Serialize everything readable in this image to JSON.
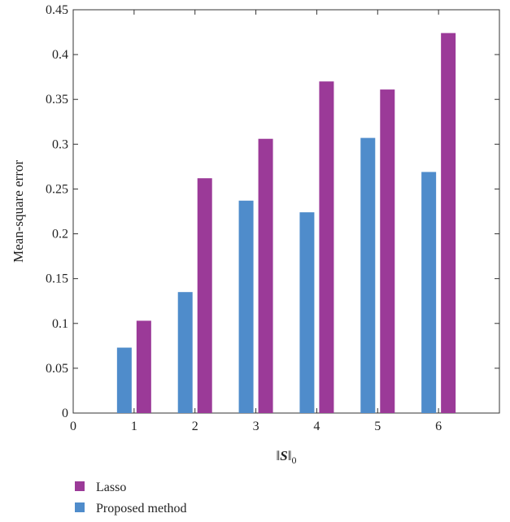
{
  "chart_data": {
    "type": "bar",
    "title": "",
    "xlabel": "‖S‖₀",
    "xlabel_parts": {
      "open": "‖",
      "var": "S",
      "close": "‖",
      "sub": "0"
    },
    "ylabel": "Mean-square error",
    "x_ticks": [
      "0",
      "1",
      "2",
      "3",
      "4",
      "5",
      "6"
    ],
    "y_ticks": [
      "0",
      "0.05",
      "0.1",
      "0.15",
      "0.2",
      "0.25",
      "0.3",
      "0.35",
      "0.4",
      "0.45"
    ],
    "xlim": [
      0,
      7
    ],
    "ylim": [
      0,
      0.45
    ],
    "categories": [
      1,
      2,
      3,
      4,
      5,
      6
    ],
    "legend_position": "bottom-left",
    "grid": false,
    "series": [
      {
        "name": "Lasso",
        "color": "#9b3a98",
        "values": [
          0.103,
          0.262,
          0.306,
          0.37,
          0.361,
          0.424
        ]
      },
      {
        "name": "Proposed method",
        "color": "#4f8ccb",
        "values": [
          0.073,
          0.135,
          0.237,
          0.224,
          0.307,
          0.269
        ]
      }
    ]
  }
}
